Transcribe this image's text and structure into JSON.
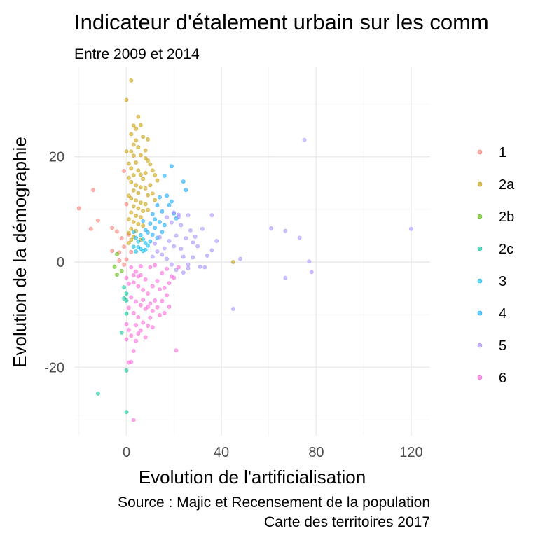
{
  "chart_data": {
    "type": "scatter",
    "title": "Indicateur d'étalement urbain sur les comm",
    "subtitle": "Entre 2009 et 2014",
    "xlabel": "Evolution de l'artificialisation",
    "ylabel": "Evolution de la démographie",
    "caption": [
      "Source : Majic et Recensement de la population",
      "Carte des territoires 2017"
    ],
    "xlim": [
      -22,
      128
    ],
    "ylim": [
      -33,
      37
    ],
    "x_ticks": [
      0,
      40,
      80,
      120
    ],
    "x_tick_labels": [
      "0",
      "40",
      "80",
      "120"
    ],
    "y_ticks": [
      -20,
      0,
      20
    ],
    "y_tick_labels": [
      "-20",
      "0",
      "20"
    ],
    "grid": true,
    "legend_position": "right",
    "series": [
      {
        "name": "1",
        "color": "#F8766D",
        "points": [
          [
            -20,
            10.2
          ],
          [
            -14,
            13.7
          ],
          [
            -12,
            7.9
          ],
          [
            -15,
            6.3
          ],
          [
            -6,
            6.5
          ],
          [
            -4,
            5.8
          ],
          [
            -6,
            2.1
          ],
          [
            -3,
            1.8
          ],
          [
            -1,
            17.3
          ],
          [
            -2,
            4.5
          ],
          [
            -1,
            2.9
          ],
          [
            0,
            11.0
          ],
          [
            0,
            0.5
          ],
          [
            -1,
            -0.5
          ],
          [
            1,
            5.2
          ],
          [
            2,
            1.9
          ],
          [
            -3,
            0.3
          ]
        ]
      },
      {
        "name": "2a",
        "color": "#C49A00",
        "points": [
          [
            2,
            34.5
          ],
          [
            0,
            30.8
          ],
          [
            5,
            27.6
          ],
          [
            3,
            25.9
          ],
          [
            4,
            25.3
          ],
          [
            6,
            26.0
          ],
          [
            2,
            24.3
          ],
          [
            7,
            23.8
          ],
          [
            4,
            23.1
          ],
          [
            9,
            23.3
          ],
          [
            3,
            22.3
          ],
          [
            5,
            21.8
          ],
          [
            8,
            21.2
          ],
          [
            0,
            21.0
          ],
          [
            2,
            21.0
          ],
          [
            3,
            20.2
          ],
          [
            6,
            20.3
          ],
          [
            8,
            19.7
          ],
          [
            1,
            18.7
          ],
          [
            4,
            18.9
          ],
          [
            9,
            19.3
          ],
          [
            10,
            18.6
          ],
          [
            2,
            17.8
          ],
          [
            5,
            17.4
          ],
          [
            6,
            16.6
          ],
          [
            8,
            16.9
          ],
          [
            3,
            16.5
          ],
          [
            11,
            17.4
          ],
          [
            12,
            16.5
          ],
          [
            1,
            16.0
          ],
          [
            7,
            15.8
          ],
          [
            13,
            15.5
          ],
          [
            2,
            15.2
          ],
          [
            4,
            14.6
          ],
          [
            6,
            14.2
          ],
          [
            8,
            14.0
          ],
          [
            10,
            14.6
          ],
          [
            3,
            13.6
          ],
          [
            5,
            13.1
          ],
          [
            9,
            12.7
          ],
          [
            11,
            13.0
          ],
          [
            1,
            12.6
          ],
          [
            2,
            12.1
          ],
          [
            4,
            11.7
          ],
          [
            6,
            11.3
          ],
          [
            8,
            11.0
          ],
          [
            12,
            11.8
          ],
          [
            3,
            10.6
          ],
          [
            5,
            10.2
          ],
          [
            7,
            9.7
          ],
          [
            9,
            9.9
          ],
          [
            2,
            9.4
          ],
          [
            4,
            8.8
          ],
          [
            6,
            8.5
          ],
          [
            1,
            8.1
          ],
          [
            3,
            7.6
          ],
          [
            5,
            7.2
          ],
          [
            7,
            6.9
          ],
          [
            2,
            6.3
          ],
          [
            4,
            5.9
          ],
          [
            1,
            5.5
          ],
          [
            3,
            4.8
          ],
          [
            2,
            4.2
          ],
          [
            45,
            0.0
          ],
          [
            1,
            3.6
          ],
          [
            6,
            4.2
          ]
        ]
      },
      {
        "name": "2b",
        "color": "#53B400",
        "points": [
          [
            -4,
            1.5
          ],
          [
            -5,
            -0.9
          ],
          [
            -4,
            -2.4
          ],
          [
            -2,
            -1.7
          ]
        ]
      },
      {
        "name": "2c",
        "color": "#00C094",
        "points": [
          [
            -1,
            -4.8
          ],
          [
            0,
            -6.0
          ],
          [
            -1,
            -6.9
          ],
          [
            0,
            -7.3
          ],
          [
            0,
            -9.8
          ],
          [
            -2,
            -13.4
          ],
          [
            0,
            -20.6
          ],
          [
            -12,
            -25.0
          ],
          [
            0,
            -28.5
          ]
        ]
      },
      {
        "name": "3",
        "color": "#00B6EB",
        "points": [
          [
            3,
            5.7
          ],
          [
            4,
            4.6
          ],
          [
            5,
            3.9
          ],
          [
            6,
            5.1
          ],
          [
            7,
            4.3
          ],
          [
            8,
            3.6
          ],
          [
            9,
            3.1
          ],
          [
            5,
            2.8
          ],
          [
            6,
            2.5
          ],
          [
            7,
            2.1
          ],
          [
            4,
            2.0
          ],
          [
            3,
            2.9
          ],
          [
            8,
            2.3
          ]
        ]
      },
      {
        "name": "4",
        "color": "#06A4FF",
        "points": [
          [
            19,
            18.2
          ],
          [
            16,
            16.4
          ],
          [
            24,
            15.3
          ],
          [
            25,
            13.7
          ],
          [
            14,
            12.3
          ],
          [
            17,
            12.6
          ],
          [
            19,
            11.5
          ],
          [
            13,
            10.8
          ],
          [
            15,
            9.6
          ],
          [
            20,
            9.2
          ],
          [
            11,
            9.1
          ],
          [
            12,
            8.1
          ],
          [
            14,
            7.6
          ],
          [
            16,
            7.0
          ],
          [
            10,
            7.3
          ],
          [
            12,
            6.5
          ],
          [
            8,
            6.1
          ],
          [
            9,
            5.6
          ],
          [
            11,
            5.2
          ],
          [
            13,
            4.6
          ],
          [
            10,
            3.9
          ],
          [
            7,
            7.8
          ],
          [
            15,
            5.7
          ],
          [
            18,
            10.8
          ],
          [
            21,
            8.3
          ]
        ]
      },
      {
        "name": "5",
        "color": "#A58AFF",
        "points": [
          [
            75,
            23.2
          ],
          [
            120,
            6.3
          ],
          [
            61,
            6.4
          ],
          [
            67,
            5.9
          ],
          [
            73,
            4.6
          ],
          [
            77,
            0.1
          ],
          [
            78,
            -1.9
          ],
          [
            67,
            -3.0
          ],
          [
            48,
            0.6
          ],
          [
            45,
            -8.9
          ],
          [
            36,
            8.9
          ],
          [
            32,
            6.3
          ],
          [
            38,
            4.0
          ],
          [
            36,
            2.2
          ],
          [
            34,
            1.2
          ],
          [
            30,
            3.0
          ],
          [
            33,
            -1.0
          ],
          [
            28,
            0.9
          ],
          [
            31,
            -0.9
          ],
          [
            26,
            -1.2
          ],
          [
            24,
            1.0
          ],
          [
            20,
            9.4
          ],
          [
            22,
            8.6
          ],
          [
            26,
            8.9
          ],
          [
            19,
            7.5
          ],
          [
            23,
            7.0
          ],
          [
            27,
            6.0
          ],
          [
            21,
            5.0
          ],
          [
            25,
            4.5
          ],
          [
            28,
            3.7
          ],
          [
            18,
            4.0
          ],
          [
            20,
            3.0
          ],
          [
            23,
            2.5
          ],
          [
            16,
            2.6
          ],
          [
            14,
            4.7
          ],
          [
            12,
            3.5
          ],
          [
            13,
            2.0
          ],
          [
            15,
            1.4
          ],
          [
            17,
            0.6
          ],
          [
            19,
            -0.5
          ],
          [
            21,
            -1.5
          ],
          [
            11,
            1.0
          ],
          [
            24,
            -2.0
          ],
          [
            26,
            -0.5
          ],
          [
            17,
            8.5
          ],
          [
            22,
            9.0
          ],
          [
            29,
            4.8
          ]
        ]
      },
      {
        "name": "6",
        "color": "#FB61D7",
        "points": [
          [
            2,
            -1.0
          ],
          [
            4,
            -1.8
          ],
          [
            6,
            -2.5
          ],
          [
            8,
            -3.3
          ],
          [
            10,
            -1.0
          ],
          [
            12,
            -0.6
          ],
          [
            3,
            -3.9
          ],
          [
            5,
            -4.6
          ],
          [
            7,
            -5.3
          ],
          [
            9,
            -6.0
          ],
          [
            11,
            -4.6
          ],
          [
            13,
            -3.6
          ],
          [
            15,
            -2.1
          ],
          [
            17,
            -1.3
          ],
          [
            19,
            -2.7
          ],
          [
            2,
            -6.7
          ],
          [
            4,
            -7.5
          ],
          [
            6,
            -8.2
          ],
          [
            8,
            -8.9
          ],
          [
            10,
            -7.9
          ],
          [
            12,
            -7.3
          ],
          [
            14,
            -5.2
          ],
          [
            16,
            -4.9
          ],
          [
            18,
            -4.0
          ],
          [
            20,
            -3.0
          ],
          [
            1,
            -8.7
          ],
          [
            3,
            -9.7
          ],
          [
            5,
            -10.5
          ],
          [
            7,
            -11.5
          ],
          [
            9,
            -8.5
          ],
          [
            11,
            -9.3
          ],
          [
            1,
            -4.1
          ],
          [
            3,
            -2.5
          ],
          [
            0,
            -11.8
          ],
          [
            4,
            -12.0
          ],
          [
            6,
            -13.0
          ],
          [
            2,
            -14.0
          ],
          [
            4,
            -15.0
          ],
          [
            8,
            -14.3
          ],
          [
            0,
            -14.7
          ],
          [
            3,
            -16.9
          ],
          [
            1,
            -19.1
          ],
          [
            2,
            -19.0
          ],
          [
            21,
            -16.8
          ],
          [
            3,
            -30.0
          ],
          [
            5,
            -13.6
          ],
          [
            13,
            -8.6
          ],
          [
            15,
            -7.4
          ],
          [
            17,
            -6.3
          ],
          [
            9,
            -12.1
          ],
          [
            11,
            -12.4
          ],
          [
            7,
            -7.2
          ],
          [
            5,
            -2.7
          ],
          [
            0,
            -3.0
          ],
          [
            1,
            -12.9
          ],
          [
            14,
            -10.1
          ],
          [
            10,
            -10.6
          ],
          [
            22,
            -1.0
          ],
          [
            6,
            -0.8
          ],
          [
            16,
            -9.7
          ],
          [
            18,
            -8.5
          ]
        ]
      }
    ]
  }
}
